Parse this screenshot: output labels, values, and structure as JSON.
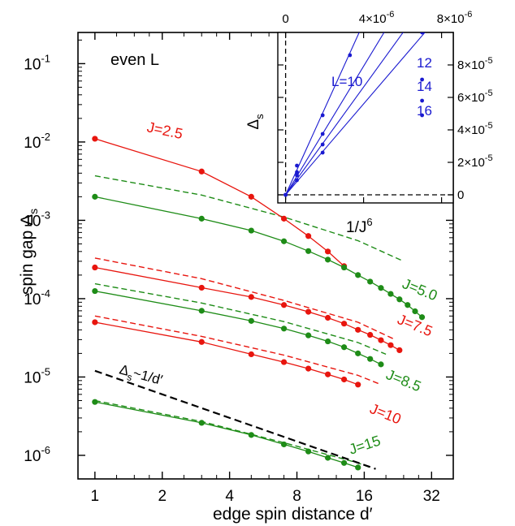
{
  "chart_data": [
    {
      "type": "line",
      "xlabel": "edge spin distance  d′",
      "ylabel": "spin gap  Δ",
      "ylabel_sub": "s",
      "annotation": "even  L",
      "x_scale": "log2",
      "y_scale": "log10",
      "xlim": [
        0.84,
        40
      ],
      "ylim": [
        5e-07,
        0.25
      ],
      "x_ticks": [
        1,
        2,
        4,
        8,
        16,
        32
      ],
      "x_tick_labels": [
        "1",
        "2",
        "4",
        "8",
        "16",
        "32"
      ],
      "y_ticks": [
        1e-06,
        1e-05,
        0.0001,
        0.001,
        0.01,
        0.1
      ],
      "y_tick_base": "10",
      "y_tick_exponents": [
        "-6",
        "-5",
        "-4",
        "-3",
        "-2",
        "-1"
      ],
      "series": [
        {
          "name": "J=2.5",
          "color": "#e8150e",
          "x": [
            1,
            3,
            5,
            7,
            9,
            11,
            13
          ],
          "y": [
            0.011,
            0.0042,
            0.002,
            0.00105,
            0.00063,
            0.0004,
            0.00026
          ]
        },
        {
          "name": "J=5.0",
          "color": "#1e8c17",
          "x": [
            1,
            3,
            5,
            7,
            9,
            11,
            13,
            15,
            17,
            19,
            21,
            23,
            25,
            27,
            29
          ],
          "y": [
            0.002,
            0.00105,
            0.00074,
            0.00054,
            0.000405,
            0.000315,
            0.00025,
            0.0002,
            0.000165,
            0.000137,
            0.000115,
            9.8e-05,
            8.3e-05,
            6.9e-05,
            5.8e-05
          ]
        },
        {
          "name": "J=7.5",
          "color": "#e8150e",
          "x": [
            1,
            3,
            5,
            7,
            9,
            11,
            13,
            15,
            17,
            19,
            21,
            23
          ],
          "y": [
            0.00025,
            0.000138,
            0.000105,
            8.3e-05,
            6.8e-05,
            5.7e-05,
            4.8e-05,
            4e-05,
            3.45e-05,
            2.95e-05,
            2.55e-05,
            2.2e-05
          ]
        },
        {
          "name": "J=8.5",
          "color": "#1e8c17",
          "x": [
            1,
            3,
            5,
            7,
            9,
            11,
            13,
            15,
            17,
            19
          ],
          "y": [
            0.000125,
            7e-05,
            5.2e-05,
            4.15e-05,
            3.4e-05,
            2.85e-05,
            2.4e-05,
            2e-05,
            1.7e-05,
            1.45e-05
          ]
        },
        {
          "name": "J=10",
          "color": "#e8150e",
          "x": [
            1,
            3,
            5,
            7,
            9,
            11,
            13,
            15
          ],
          "y": [
            5e-05,
            2.8e-05,
            1.95e-05,
            1.55e-05,
            1.28e-05,
            1.08e-05,
            9.3e-06,
            8e-06
          ]
        },
        {
          "name": "J=15",
          "color": "#1e8c17",
          "x": [
            1,
            3,
            5,
            7,
            9,
            11,
            13,
            15
          ],
          "y": [
            4.8e-06,
            2.6e-06,
            1.82e-06,
            1.38e-06,
            1.12e-06,
            9.3e-07,
            8e-07,
            7e-07
          ]
        }
      ],
      "reference_lines": [
        {
          "color": "#1e8c17",
          "x": [
            1,
            3,
            7,
            15,
            24
          ],
          "y": [
            0.0037,
            0.0021,
            0.0011,
            0.00055,
            0.0003
          ]
        },
        {
          "color": "#e8150e",
          "x": [
            1,
            3,
            7,
            15,
            22
          ],
          "y": [
            0.00033,
            0.00018,
            9.5e-05,
            5e-05,
            3e-05
          ]
        },
        {
          "color": "#1e8c17",
          "x": [
            1,
            3,
            7,
            15,
            20
          ],
          "y": [
            0.000155,
            8.8e-05,
            5.1e-05,
            2.75e-05,
            1.95e-05
          ]
        },
        {
          "color": "#e8150e",
          "x": [
            1,
            3,
            7,
            15,
            19
          ],
          "y": [
            6e-05,
            3.3e-05,
            1.9e-05,
            1.05e-05,
            8e-06
          ]
        },
        {
          "color": "#1e8c17",
          "x": [
            1,
            3,
            7,
            15,
            17
          ],
          "y": [
            5e-06,
            2.7e-06,
            1.45e-06,
            8e-07,
            7e-07
          ]
        },
        {
          "color": "#000000",
          "x": [
            1,
            18
          ],
          "y": [
            1.2e-05,
            6.7e-07
          ]
        }
      ],
      "reference_label": {
        "text": "Δ",
        "sub": "s",
        "rest": "~1/d′"
      }
    },
    {
      "type": "scatter",
      "inset": true,
      "xlabel": "1/J",
      "xlabel_sup": "6",
      "ylabel": "Δ",
      "ylabel_sub": "s",
      "xlim": [
        -4e-07,
        8.6e-06
      ],
      "ylim": [
        -5e-06,
        0.0001
      ],
      "x_ticks": [
        0,
        4e-06,
        8e-06
      ],
      "x_tick_labels": [
        {
          "base": "0",
          "exp": ""
        },
        {
          "base": "4×10",
          "exp": "-6"
        },
        {
          "base": "8×10",
          "exp": "-6"
        }
      ],
      "y_ticks": [
        0,
        2e-05,
        4e-05,
        6e-05,
        8e-05
      ],
      "y_tick_labels": [
        {
          "base": "0",
          "exp": ""
        },
        {
          "base": "2×10",
          "exp": "-5"
        },
        {
          "base": "4×10",
          "exp": "-5"
        },
        {
          "base": "6×10",
          "exp": "-5"
        },
        {
          "base": "8×10",
          "exp": "-5"
        }
      ],
      "series": [
        {
          "name": "L=10",
          "color": "#1a1ad0",
          "x": [
            0,
            5.8e-07,
            1.9e-06,
            3.3e-06,
            7e-06
          ],
          "y": [
            0,
            1.8e-05,
            4.9e-05,
            8.6e-05,
            0.0001
          ],
          "fit_slope": 26.5
        },
        {
          "name": "12",
          "color": "#1a1ad0",
          "x": [
            0,
            5.8e-07,
            1.9e-06,
            7e-06
          ],
          "y": [
            0,
            1.4e-05,
            3.75e-05,
            7.1e-05
          ],
          "fit_slope": 19.8
        },
        {
          "name": "14",
          "color": "#1a1ad0",
          "x": [
            0,
            5.8e-07,
            1.9e-06,
            7e-06
          ],
          "y": [
            0,
            1.2e-05,
            3.1e-05,
            5.8e-05
          ],
          "fit_slope": 16.6
        },
        {
          "name": "16",
          "color": "#1a1ad0",
          "x": [
            0,
            5.8e-07,
            1.9e-06,
            7e-06
          ],
          "y": [
            0,
            9e-06,
            2.6e-05,
            4.9e-05
          ],
          "fit_slope": 14.0
        }
      ]
    }
  ]
}
